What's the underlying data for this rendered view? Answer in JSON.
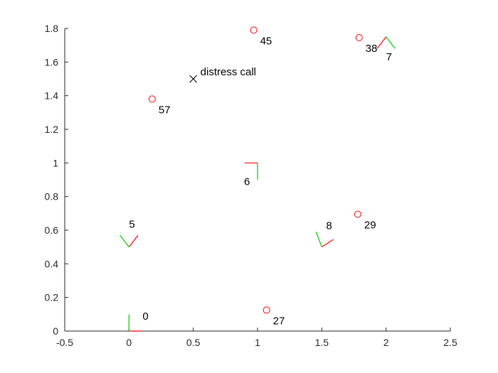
{
  "chart_data": {
    "type": "scatter",
    "title": "",
    "xlabel": "",
    "ylabel": "",
    "xlim": [
      -0.5,
      2.5
    ],
    "ylim": [
      0,
      1.8
    ],
    "grid": false,
    "x_ticks": [
      -0.5,
      0,
      0.5,
      1,
      1.5,
      2,
      2.5
    ],
    "x_tick_labels": [
      "-0.5",
      "0",
      "0.5",
      "1",
      "1.5",
      "2",
      "2.5"
    ],
    "y_ticks": [
      0,
      0.2,
      0.4,
      0.6,
      0.8,
      1,
      1.2,
      1.4,
      1.6,
      1.8
    ],
    "y_tick_labels": [
      "0",
      "0.2",
      "0.4",
      "0.6",
      "0.8",
      "1",
      "1.2",
      "1.4",
      "1.6",
      "1.8"
    ],
    "colors": {
      "circle": "#ff0000",
      "red_arm": "#ff0000",
      "green_arm": "#00cc00",
      "marker_x": "#000000",
      "axis": "#262626"
    },
    "circles": [
      {
        "x": 0.97,
        "y": 1.79,
        "label": "45"
      },
      {
        "x": 1.79,
        "y": 1.745,
        "label": "38"
      },
      {
        "x": 0.18,
        "y": 1.38,
        "label": "57"
      },
      {
        "x": 1.78,
        "y": 0.695,
        "label": "29"
      },
      {
        "x": 1.07,
        "y": 0.125,
        "label": "27"
      }
    ],
    "poses": [
      {
        "x": 0,
        "y": 0,
        "label": "0",
        "red": [
          0.1,
          0
        ],
        "green": [
          0,
          0.1
        ]
      },
      {
        "x": 0,
        "y": 0.5,
        "label": "5",
        "red": [
          0.07,
          0.07
        ],
        "green": [
          -0.07,
          0.07
        ]
      },
      {
        "x": 1,
        "y": 1,
        "label": "6",
        "red": [
          -0.1,
          0
        ],
        "green": [
          0,
          -0.1
        ]
      },
      {
        "x": 2,
        "y": 1.75,
        "label": "7",
        "red": [
          -0.07,
          -0.07
        ],
        "green": [
          0.07,
          -0.07
        ]
      },
      {
        "x": 1.5,
        "y": 0.5,
        "label": "8",
        "red": [
          0.09,
          0.045
        ],
        "green": [
          -0.045,
          0.09
        ]
      }
    ],
    "markers": [
      {
        "x": 0.5,
        "y": 1.5,
        "label": "distress call",
        "symbol": "x"
      }
    ]
  }
}
